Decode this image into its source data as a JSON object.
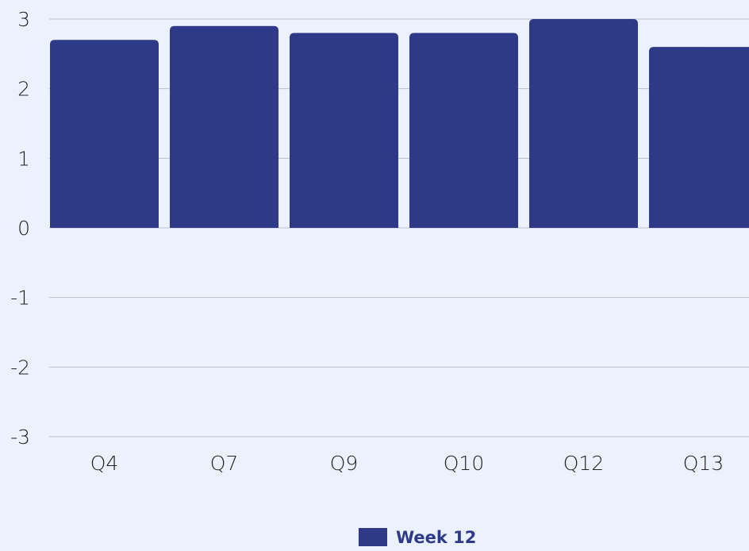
{
  "chart_data": {
    "type": "bar",
    "categories": [
      "Q4",
      "Q7",
      "Q9",
      "Q10",
      "Q12",
      "Q13"
    ],
    "series": [
      {
        "name": "Week 12",
        "color": "#2e3a87",
        "values": [
          2.7,
          2.9,
          2.8,
          2.8,
          3.0,
          2.6
        ]
      }
    ],
    "ylim": [
      -3,
      3
    ],
    "yticks": [
      -3,
      -2,
      -1,
      0,
      1,
      2,
      3
    ],
    "grid": true,
    "legend": "bottom"
  }
}
